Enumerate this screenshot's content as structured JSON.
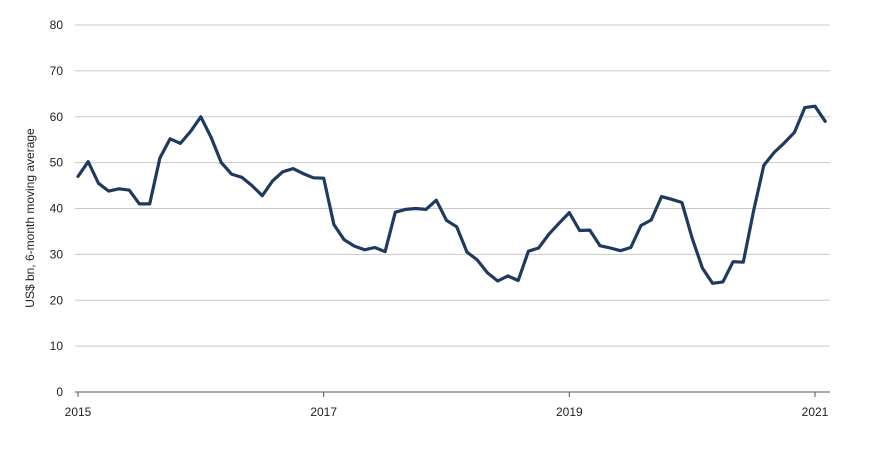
{
  "chart_data": {
    "type": "line",
    "title": "",
    "xlabel": "",
    "ylabel": "US$ bn, 6-month moving average",
    "x_ticks": [
      "2015",
      "2017",
      "2019",
      "2021"
    ],
    "y_ticks": [
      0,
      10,
      20,
      30,
      40,
      50,
      60,
      70,
      80
    ],
    "ylim": [
      0,
      80
    ],
    "xlim": [
      "2015-01",
      "2021-03"
    ],
    "grid": "horizontal",
    "legend": "none",
    "line_color": "#1f3a5f",
    "series": [
      {
        "x": [
          "2015-01",
          "2015-02",
          "2015-03",
          "2015-04",
          "2015-05",
          "2015-06",
          "2015-07",
          "2015-08",
          "2015-09",
          "2015-10",
          "2015-11",
          "2015-12",
          "2016-01",
          "2016-02",
          "2016-03",
          "2016-04",
          "2016-05",
          "2016-06",
          "2016-07",
          "2016-08",
          "2016-09",
          "2016-10",
          "2016-11",
          "2016-12",
          "2017-01",
          "2017-02",
          "2017-03",
          "2017-04",
          "2017-05",
          "2017-06",
          "2017-07",
          "2017-08",
          "2017-09",
          "2017-10",
          "2017-11",
          "2017-12",
          "2018-01",
          "2018-02",
          "2018-03",
          "2018-04",
          "2018-05",
          "2018-06",
          "2018-07",
          "2018-08",
          "2018-09",
          "2018-10",
          "2018-11",
          "2018-12",
          "2019-01",
          "2019-02",
          "2019-03",
          "2019-04",
          "2019-05",
          "2019-06",
          "2019-07",
          "2019-08",
          "2019-09",
          "2019-10",
          "2019-11",
          "2019-12",
          "2020-01",
          "2020-02",
          "2020-03",
          "2020-04",
          "2020-05",
          "2020-06",
          "2020-07",
          "2020-08",
          "2020-09",
          "2020-10",
          "2020-11",
          "2020-12",
          "2021-01",
          "2021-02"
        ],
        "values": [
          47,
          50.2,
          45.5,
          43.8,
          44.3,
          44,
          41,
          41,
          51,
          55.2,
          54.2,
          56.8,
          60,
          55.5,
          50,
          47.5,
          46.8,
          45,
          42.8,
          46,
          48,
          48.7,
          47.6,
          46.7,
          46.6,
          36.5,
          33.2,
          31.8,
          31,
          31.5,
          30.6,
          39.2,
          39.8,
          40,
          39.8,
          41.8,
          37.4,
          36,
          30.5,
          28.8,
          26,
          24.2,
          25.3,
          24.3,
          30.7,
          31.4,
          34.4,
          36.8,
          39.1,
          35.2,
          35.3,
          31.9,
          31.4,
          30.8,
          31.5,
          36.3,
          37.5,
          42.6,
          42,
          41.3,
          33.5,
          27,
          23.7,
          24,
          28.4,
          28.3,
          39.5,
          49.4,
          52.2,
          54.3,
          56.6,
          62,
          62.3,
          59
        ]
      }
    ]
  }
}
